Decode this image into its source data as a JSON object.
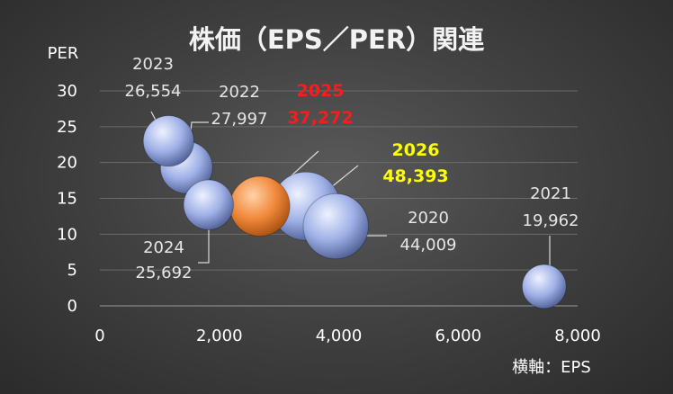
{
  "chart_data": {
    "type": "bubble",
    "title": "株価（EPS／PER）関連",
    "ylabel": "PER",
    "xlabel": "横軸：EPS",
    "xlim": [
      0,
      8000
    ],
    "ylim": [
      0,
      30
    ],
    "x_ticks": [
      "0",
      "2,000",
      "4,000",
      "6,000",
      "8,000"
    ],
    "y_ticks": [
      "0",
      "5",
      "10",
      "15",
      "20",
      "25",
      "30"
    ],
    "grid": true,
    "points": [
      {
        "year": "2020",
        "price_label": "44,009",
        "eps": 3950,
        "per": 11.1,
        "price": 44009,
        "color": "#b5c3ee",
        "label_color": "#e6e6e6"
      },
      {
        "year": "2021",
        "price_label": "19,962",
        "eps": 7440,
        "per": 2.7,
        "price": 19962,
        "color": "#b5c3ee",
        "label_color": "#e6e6e6"
      },
      {
        "year": "2022",
        "price_label": "27,997",
        "eps": 1450,
        "per": 19.3,
        "price": 27997,
        "color": "#b5c3ee",
        "label_color": "#e6e6e6"
      },
      {
        "year": "2023",
        "price_label": "26,554",
        "eps": 1150,
        "per": 23.0,
        "price": 26554,
        "color": "#b5c3ee",
        "label_color": "#e6e6e6"
      },
      {
        "year": "2024",
        "price_label": "25,692",
        "eps": 1820,
        "per": 14.1,
        "price": 25692,
        "color": "#b5c3ee",
        "label_color": "#e6e6e6"
      },
      {
        "year": "2025",
        "price_label": "37,272",
        "eps": 2680,
        "per": 13.9,
        "price": 37272,
        "color": "#f08c3a",
        "label_color": "#ff1a1a"
      },
      {
        "year": "2026",
        "price_label": "48,393",
        "eps": 3450,
        "per": 13.9,
        "price": 48393,
        "color": "#b5c3ee",
        "label_color": "#ffff00"
      }
    ]
  }
}
